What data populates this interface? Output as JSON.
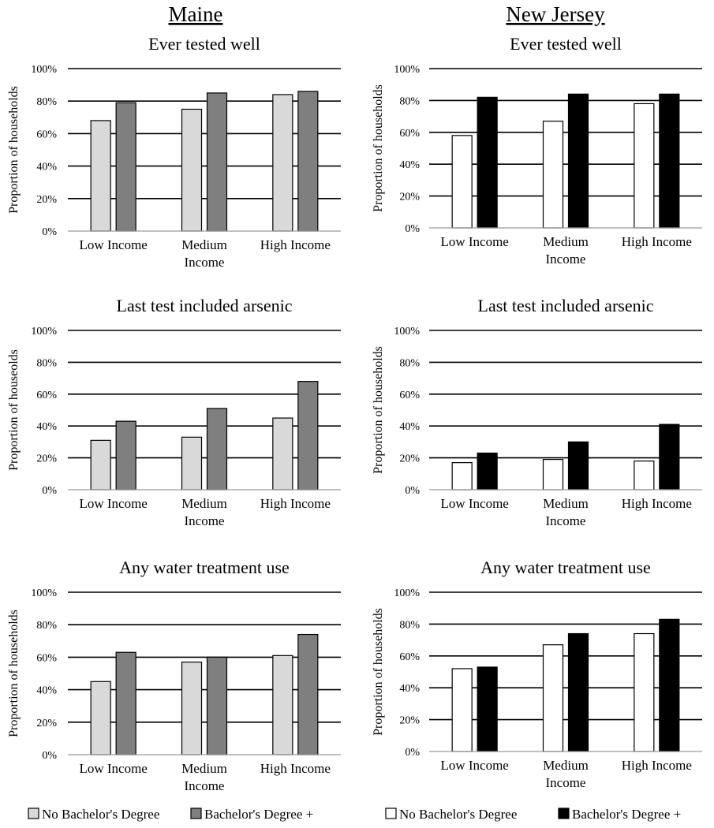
{
  "figure": {
    "columns": [
      "Maine",
      "New Jersey"
    ],
    "legends": [
      {
        "series": [
          "No Bachelor's Degree",
          "Bachelor's Degree +"
        ],
        "colors": [
          "#d9d9d9",
          "#7f7f7f"
        ]
      },
      {
        "series": [
          "No Bachelor's Degree",
          "Bachelor's Degree +"
        ],
        "colors": [
          "#ffffff",
          "#000000"
        ]
      }
    ]
  },
  "chart_data": [
    {
      "type": "bar",
      "panel": "Maine",
      "title": "Ever tested well",
      "ylabel": "Proportion of households",
      "ylim": [
        0,
        100
      ],
      "yticks": [
        "0%",
        "20%",
        "40%",
        "60%",
        "80%",
        "100%"
      ],
      "categories": [
        [
          "Low Income"
        ],
        [
          "Medium",
          "Income"
        ],
        [
          "High Income"
        ]
      ],
      "series": [
        {
          "name": "No Bachelor's Degree",
          "color": "#d9d9d9",
          "values": [
            68,
            75,
            84
          ]
        },
        {
          "name": "Bachelor's Degree +",
          "color": "#7f7f7f",
          "values": [
            79,
            85,
            86
          ]
        }
      ]
    },
    {
      "type": "bar",
      "panel": "New Jersey",
      "title": "Ever tested well",
      "ylabel": "Proportion of households",
      "ylim": [
        0,
        100
      ],
      "yticks": [
        "0%",
        "20%",
        "40%",
        "60%",
        "80%",
        "100%"
      ],
      "categories": [
        [
          "Low Income"
        ],
        [
          "Medium",
          "Income"
        ],
        [
          "High Income"
        ]
      ],
      "series": [
        {
          "name": "No Bachelor's Degree",
          "color": "#ffffff",
          "values": [
            58,
            67,
            78
          ]
        },
        {
          "name": "Bachelor's Degree +",
          "color": "#000000",
          "values": [
            82,
            84,
            84
          ]
        }
      ]
    },
    {
      "type": "bar",
      "panel": "Maine",
      "title": "Last test included arsenic",
      "ylabel": "Proportion of houseolds",
      "ylim": [
        0,
        100
      ],
      "yticks": [
        "0%",
        "20%",
        "40%",
        "60%",
        "80%",
        "100%"
      ],
      "categories": [
        [
          "Low Income"
        ],
        [
          "Medium",
          "Income"
        ],
        [
          "High Income"
        ]
      ],
      "series": [
        {
          "name": "No Bachelor's Degree",
          "color": "#d9d9d9",
          "values": [
            31,
            33,
            45
          ]
        },
        {
          "name": "Bachelor's Degree +",
          "color": "#7f7f7f",
          "values": [
            43,
            51,
            68
          ]
        }
      ]
    },
    {
      "type": "bar",
      "panel": "New Jersey",
      "title": "Last test included arsenic",
      "ylabel": "Proportion of households",
      "ylim": [
        0,
        100
      ],
      "yticks": [
        "0%",
        "20%",
        "40%",
        "60%",
        "80%",
        "100%"
      ],
      "categories": [
        [
          "Low Income"
        ],
        [
          "Medium",
          "Income"
        ],
        [
          "High Income"
        ]
      ],
      "series": [
        {
          "name": "No Bachelor's Degree",
          "color": "#ffffff",
          "values": [
            17,
            19,
            18
          ]
        },
        {
          "name": "Bachelor's Degree +",
          "color": "#000000",
          "values": [
            23,
            30,
            41
          ]
        }
      ]
    },
    {
      "type": "bar",
      "panel": "Maine",
      "title": "Any water treatment use",
      "ylabel": "Proportion of households",
      "ylim": [
        0,
        100
      ],
      "yticks": [
        "0%",
        "20%",
        "40%",
        "60%",
        "80%",
        "100%"
      ],
      "categories": [
        [
          "Low Income"
        ],
        [
          "Medium",
          "Income"
        ],
        [
          "High Income"
        ]
      ],
      "series": [
        {
          "name": "No Bachelor's Degree",
          "color": "#d9d9d9",
          "values": [
            45,
            57,
            61
          ]
        },
        {
          "name": "Bachelor's Degree +",
          "color": "#7f7f7f",
          "values": [
            63,
            60,
            74
          ]
        }
      ]
    },
    {
      "type": "bar",
      "panel": "New Jersey",
      "title": "Any water treatment use",
      "ylabel": "Proportion of households",
      "ylim": [
        0,
        100
      ],
      "yticks": [
        "0%",
        "20%",
        "40%",
        "60%",
        "80%",
        "100%"
      ],
      "categories": [
        [
          "Low Income"
        ],
        [
          "Medium",
          "Income"
        ],
        [
          "High Income"
        ]
      ],
      "series": [
        {
          "name": "No Bachelor's Degree",
          "color": "#ffffff",
          "values": [
            52,
            67,
            74
          ]
        },
        {
          "name": "Bachelor's Degree +",
          "color": "#000000",
          "values": [
            53,
            74,
            83
          ]
        }
      ]
    }
  ]
}
